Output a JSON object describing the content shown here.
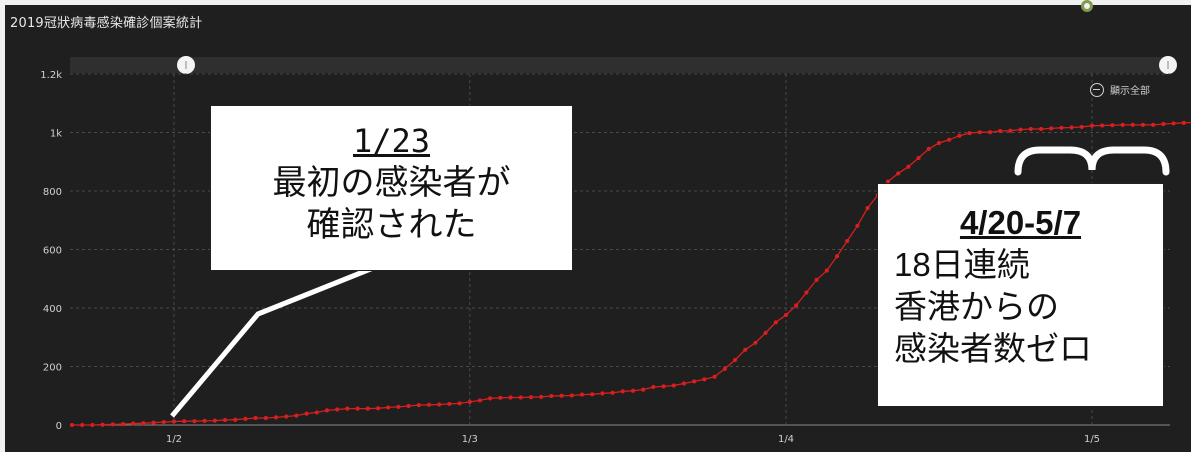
{
  "title": "2019冠狀病毒感染確診個案統計",
  "reset_button": {
    "label": "顯示全部",
    "icon": "zoom-out-icon"
  },
  "colors": {
    "background": "#1f1f1f",
    "series": "#d81e1e",
    "grid": "#4a4a4a",
    "axis_text": "#d0d0d0",
    "slider_bar": "#2f2f2f",
    "annotation_line": "#ffffff"
  },
  "annotations": {
    "first_case": {
      "date": "1/23",
      "line1": "最初の感染者が",
      "line2": "確認された"
    },
    "zero_streak": {
      "date": "4/20-5/7",
      "line1": "18日連続",
      "line2": "香港からの",
      "line3": "感染者数ゼロ"
    }
  },
  "chart_data": {
    "type": "line",
    "title": "2019冠狀病毒感染確診個案統計",
    "x_unit": "day",
    "x_start": "1/23",
    "x_ticks": [
      "1/2",
      "1/3",
      "1/4",
      "1/5"
    ],
    "y_ticks": [
      "0",
      "200",
      "400",
      "600",
      "800",
      "1k",
      "1.2k"
    ],
    "ylim": [
      0,
      1200
    ],
    "grid": true,
    "legend": "none",
    "series": [
      {
        "values": [
          0,
          0,
          0,
          1,
          2,
          3,
          5,
          6,
          8,
          10,
          12,
          13,
          13,
          14,
          15,
          17,
          18,
          21,
          24,
          24,
          26,
          29,
          32,
          39,
          43,
          50,
          53,
          56,
          56,
          56,
          57,
          60,
          62,
          65,
          68,
          69,
          70,
          72,
          74,
          79,
          84,
          91,
          93,
          94,
          94,
          95,
          96,
          99,
          100,
          101,
          104,
          105,
          108,
          110,
          115,
          117,
          121,
          130,
          132,
          135,
          142,
          149,
          156,
          165,
          192,
          222,
          257,
          281,
          315,
          351,
          376,
          409,
          453,
          496,
          528,
          577,
          629,
          681,
          742,
          786,
          832,
          860,
          883,
          913,
          944,
          964,
          975,
          989,
          998,
          1001,
          1001,
          1005,
          1006,
          1010,
          1012,
          1012,
          1014,
          1016,
          1017,
          1019,
          1023,
          1024,
          1025,
          1026,
          1026,
          1026,
          1026,
          1029,
          1031,
          1033,
          1034,
          1035,
          1035,
          1035,
          1036,
          1036,
          1037,
          1037,
          1037,
          1037,
          1038,
          1038,
          1039,
          1039,
          1040
        ]
      }
    ]
  }
}
